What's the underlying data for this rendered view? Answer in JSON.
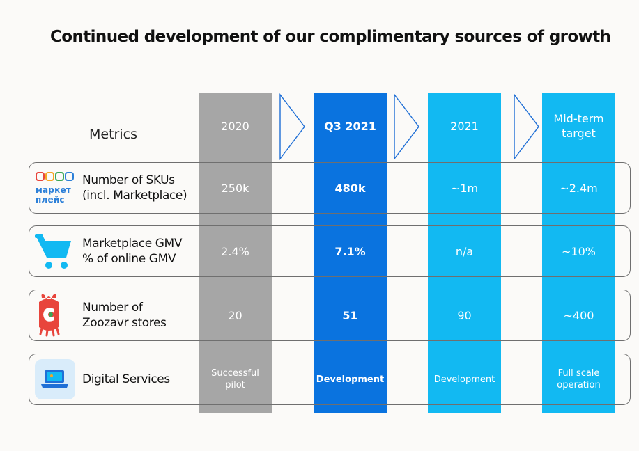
{
  "title": "Continued development of our complimentary sources of growth",
  "metrics_header": "Metrics",
  "columns": [
    {
      "label": "2020"
    },
    {
      "label": "Q3 2021"
    },
    {
      "label": "2021"
    },
    {
      "label": "Mid-term target"
    }
  ],
  "rows": [
    {
      "label_line1": "Number of SKUs",
      "label_line2": "(incl. Marketplace)",
      "icon": "marketplace-logo",
      "icon_text_line1": "маркет",
      "icon_text_line2": "плейс",
      "values": [
        "250k",
        "480k",
        "~1m",
        "~2.4m"
      ]
    },
    {
      "label_line1": "Marketplace GMV",
      "label_line2": "% of online GMV",
      "icon": "shopping-cart-icon",
      "values": [
        "2.4%",
        "7.1%",
        "n/a",
        "~10%"
      ]
    },
    {
      "label_line1": "Number of",
      "label_line2": "Zoozavr stores",
      "icon": "zoozavr-mascot-icon",
      "values": [
        "20",
        "51",
        "90",
        "~400"
      ]
    },
    {
      "label_line1": "Digital Services",
      "label_line2": "",
      "icon": "laptop-icon",
      "values": [
        "Successful pilot",
        "Development",
        "Development",
        "Full scale operation"
      ]
    }
  ],
  "colors": {
    "col_2020": "#a6a6a6",
    "col_q3_2021": "#0a73df",
    "col_2021": "#12b9f2",
    "col_midterm": "#12b9f2",
    "arrow": "#1f6fd6"
  }
}
